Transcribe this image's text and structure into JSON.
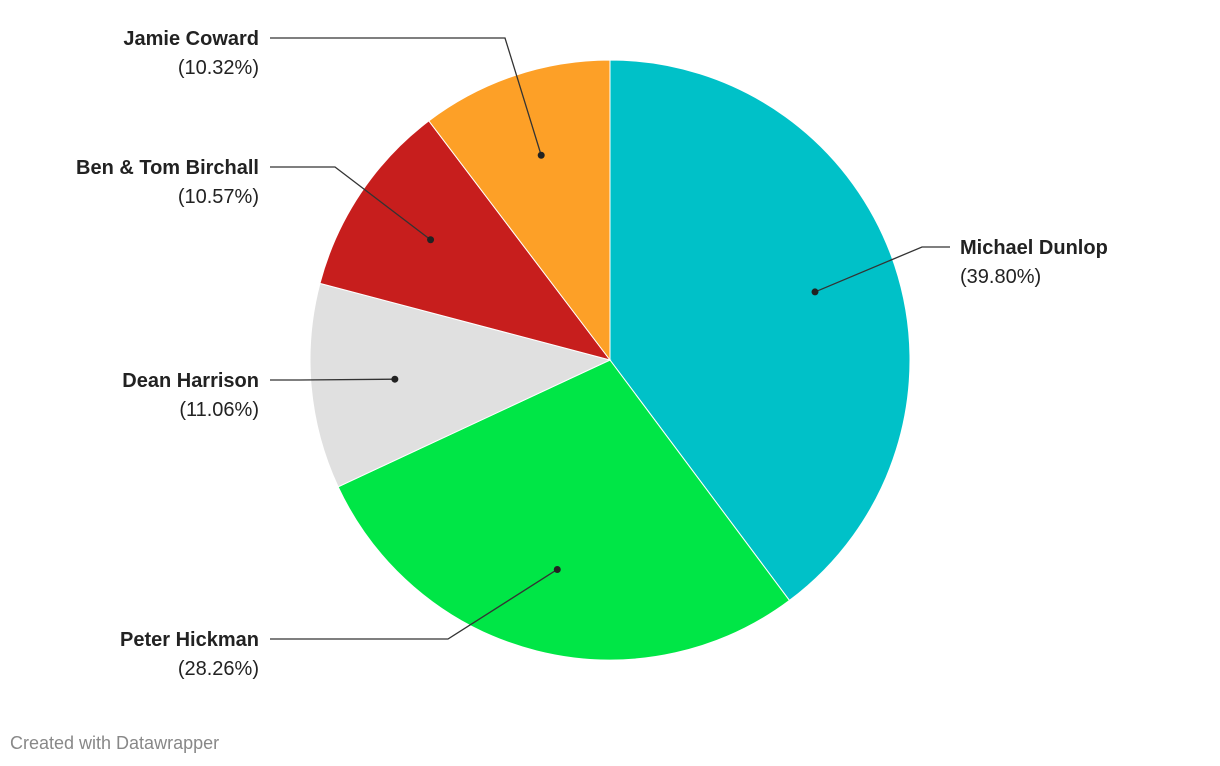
{
  "chart_data": {
    "type": "pie",
    "categories": [
      "Michael Dunlop",
      "Peter Hickman",
      "Dean Harrison",
      "Ben & Tom Birchall",
      "Jamie Coward"
    ],
    "values": [
      39.8,
      28.26,
      11.06,
      10.57,
      10.32
    ],
    "value_labels": [
      "(39.80%)",
      "(28.26%)",
      "(11.06%)",
      "(10.57%)",
      "(10.32%)"
    ],
    "colors": [
      "#00c1c8",
      "#00e646",
      "#e0e0e0",
      "#c71e1d",
      "#fda027"
    ],
    "footer": "Created with Datawrapper"
  }
}
